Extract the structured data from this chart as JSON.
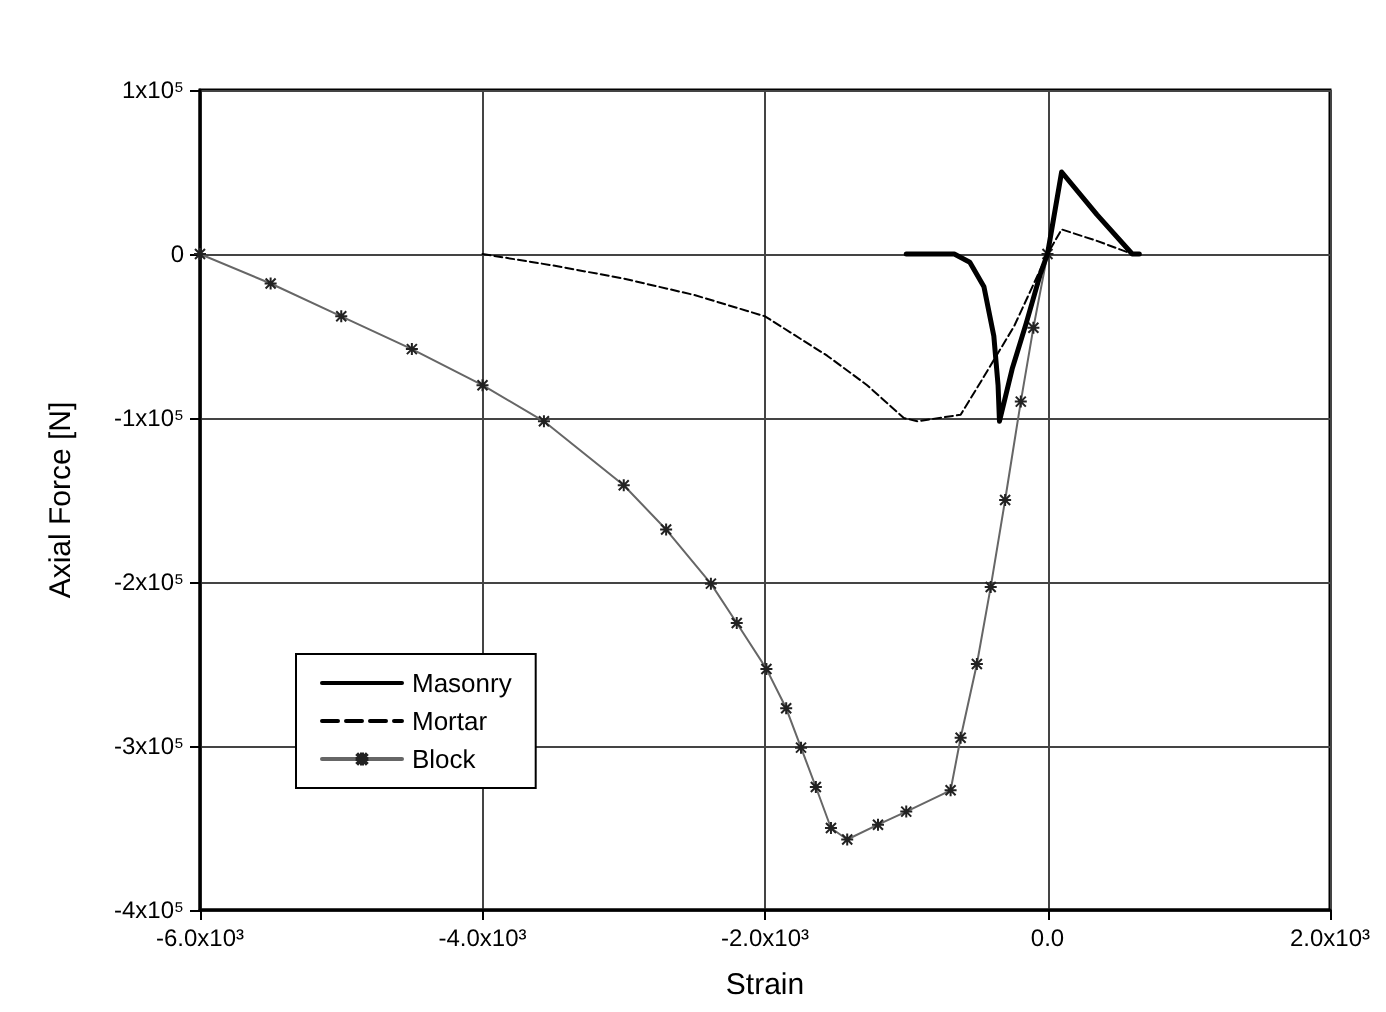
{
  "chart_data": {
    "type": "line",
    "xlabel": "Strain",
    "ylabel": "Axial Force [N]",
    "xlim": [
      -6000,
      2000
    ],
    "xticks": [
      {
        "value": -6000,
        "label": "-6.0x10³"
      },
      {
        "value": -4000,
        "label": "-4.0x10³"
      },
      {
        "value": -2000,
        "label": "-2.0x10³"
      },
      {
        "value": 0,
        "label": "0.0"
      },
      {
        "value": 2000,
        "label": "2.0x10³"
      }
    ],
    "ylim": [
      -400000,
      100000
    ],
    "yticks": [
      {
        "value": -400000,
        "label": "-4x10⁵"
      },
      {
        "value": -300000,
        "label": "-3x10⁵"
      },
      {
        "value": -200000,
        "label": "-2x10⁵"
      },
      {
        "value": -100000,
        "label": "-1x10⁵"
      },
      0,
      {
        "value": 100000,
        "label": "1x10⁵"
      }
    ],
    "grid": true,
    "legend": "bottom left",
    "series": [
      {
        "name": "Masonry",
        "color": "#000000",
        "line_style": "solid",
        "marker": "none",
        "x": [
          -1000,
          -660,
          -550,
          -450,
          -380,
          -350,
          -340,
          -250,
          -150,
          -50,
          0,
          100,
          350,
          600,
          650
        ],
        "values": [
          0,
          0,
          -5000,
          -20000,
          -50000,
          -80000,
          -102000,
          -70000,
          -42000,
          -12000,
          0,
          50000,
          24000,
          0,
          0
        ]
      },
      {
        "name": "Mortar",
        "color": "#000000",
        "line_style": "dashed",
        "marker": "none",
        "x": [
          -4000,
          -3500,
          -3000,
          -2500,
          -2000,
          -1560,
          -1277,
          -1017,
          -922,
          -615,
          -473,
          -236,
          0,
          100,
          350,
          600
        ],
        "values": [
          0,
          -7000,
          -15000,
          -25000,
          -38000,
          -62000,
          -80000,
          -100000,
          -102000,
          -98000,
          -78000,
          -44000,
          0,
          15000,
          8000,
          0
        ]
      },
      {
        "name": "Block",
        "color": "#666666",
        "line_style": "solid",
        "marker": "cross",
        "x": [
          -6000,
          -5500,
          -5000,
          -4500,
          -4000,
          -3565,
          -3000,
          -2700,
          -2383,
          -2200,
          -1990,
          -1850,
          -1745,
          -1640,
          -1533,
          -1418,
          -1200,
          -1000,
          -686,
          -615,
          -500,
          -402,
          -300,
          -189,
          -100,
          0
        ],
        "values": [
          0,
          -18000,
          -38000,
          -58000,
          -80000,
          -102000,
          -141000,
          -168000,
          -201000,
          -225000,
          -253000,
          -277000,
          -301000,
          -325000,
          -350000,
          -357000,
          -348000,
          -340000,
          -327000,
          -295000,
          -250000,
          -203000,
          -150000,
          -90000,
          -45000,
          0
        ]
      }
    ]
  }
}
